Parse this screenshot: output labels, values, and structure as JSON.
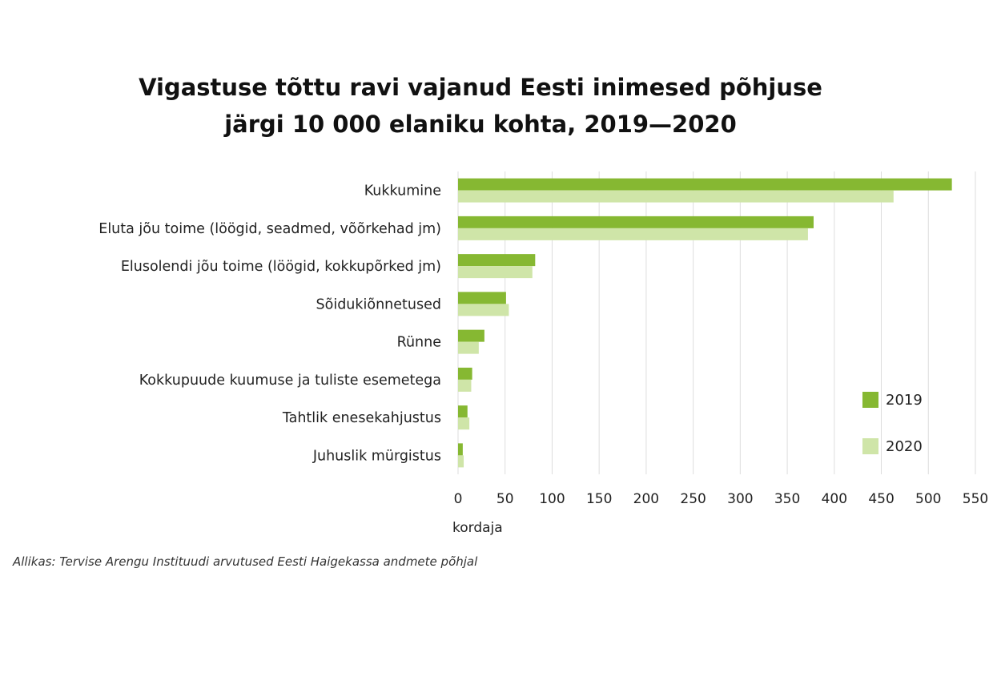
{
  "chart_data": {
    "type": "bar",
    "orientation": "horizontal",
    "title_lines": [
      "Vigastuse tõttu ravi vajanud Eesti inimesed põhjuse",
      "järgi 10 000 elaniku kohta, 2019—2020"
    ],
    "categories": [
      "Kukkumine",
      "Eluta jõu toime (löögid, seadmed, võõrkehad jm)",
      "Elusolendi jõu toime (löögid, kokkupõrked jm)",
      "Sõidukiõnnetused",
      "Rünne",
      "Kokkupuude kuumuse ja tuliste esemetega",
      "Tahtlik enesekahjustus",
      "Juhuslik mürgistus"
    ],
    "series": [
      {
        "name": "2019",
        "color": "#86b832",
        "values": [
          525,
          378,
          82,
          51,
          28,
          15,
          10,
          5
        ]
      },
      {
        "name": "2020",
        "color": "#cfe5a8",
        "values": [
          463,
          372,
          79,
          54,
          22,
          14,
          12,
          6
        ]
      }
    ],
    "xlabel": "kordaja",
    "xlim": [
      0,
      550
    ],
    "xticks": [
      "0",
      "50",
      "100",
      "150",
      "200",
      "250",
      "300",
      "350",
      "400",
      "450",
      "500",
      "550"
    ],
    "grid": true,
    "legend_position": "right"
  },
  "source": "Allikas: Tervise Arengu Instituudi arvutused Eesti Haigekassa andmete põhjal"
}
